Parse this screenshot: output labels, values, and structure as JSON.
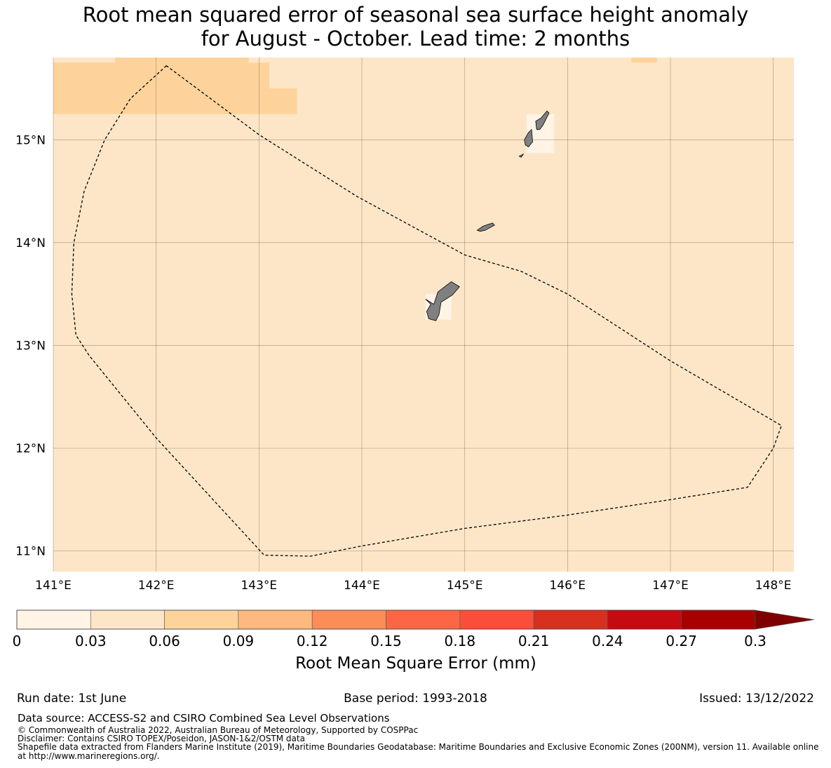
{
  "title": {
    "line1": "Root mean squared error of seasonal sea surface height anomaly",
    "line2": "for August - October. Lead time: 2 months"
  },
  "map": {
    "lon_range": [
      141.0,
      148.2
    ],
    "lat_range": [
      10.8,
      15.8
    ],
    "lon_ticks": [
      {
        "value": 141,
        "label": "141°E"
      },
      {
        "value": 142,
        "label": "142°E"
      },
      {
        "value": 143,
        "label": "143°E"
      },
      {
        "value": 144,
        "label": "144°E"
      },
      {
        "value": 145,
        "label": "145°E"
      },
      {
        "value": 146,
        "label": "146°E"
      },
      {
        "value": 147,
        "label": "147°E"
      },
      {
        "value": 148,
        "label": "148°E"
      }
    ],
    "lat_ticks": [
      {
        "value": 15,
        "label": "15°N"
      },
      {
        "value": 14,
        "label": "14°N"
      },
      {
        "value": 13,
        "label": "13°N"
      },
      {
        "value": 12,
        "label": "12°N"
      },
      {
        "value": 11,
        "label": "11°N"
      }
    ],
    "gridlines": true,
    "background_color": "#fde6c7",
    "land_color": "#808080",
    "higher_error_cells": [
      {
        "lon": [
          141.0,
          142.1
        ],
        "lat": [
          15.25,
          15.75
        ],
        "color": "#fdd39b"
      },
      {
        "lon": [
          141.6,
          142.9
        ],
        "lat": [
          15.75,
          15.8
        ],
        "color": "#fdd39b"
      },
      {
        "lon": [
          142.1,
          143.1
        ],
        "lat": [
          15.25,
          15.75
        ],
        "color": "#fdd39b"
      },
      {
        "lon": [
          143.1,
          143.37
        ],
        "lat": [
          15.25,
          15.5
        ],
        "color": "#fdd39b"
      },
      {
        "lon": [
          146.62,
          146.87
        ],
        "lat": [
          15.75,
          15.8
        ],
        "color": "#fdd39b"
      }
    ],
    "lower_error_cells": [
      {
        "lon": [
          145.6,
          145.87
        ],
        "lat": [
          14.87,
          15.25
        ],
        "color": "#fff4e5"
      },
      {
        "lon": [
          144.62,
          144.87
        ],
        "lat": [
          13.25,
          13.5
        ],
        "color": "#fff4e5"
      }
    ],
    "eez_boundary": [
      [
        142.1,
        15.72
      ],
      [
        141.75,
        15.4
      ],
      [
        141.5,
        15.0
      ],
      [
        141.3,
        14.5
      ],
      [
        141.2,
        14.0
      ],
      [
        141.18,
        13.5
      ],
      [
        141.22,
        13.1
      ],
      [
        141.35,
        12.9
      ],
      [
        142.0,
        12.1
      ],
      [
        143.05,
        10.96
      ],
      [
        143.5,
        10.95
      ],
      [
        144.0,
        11.05
      ],
      [
        145.0,
        11.22
      ],
      [
        146.0,
        11.35
      ],
      [
        147.0,
        11.5
      ],
      [
        147.75,
        11.62
      ],
      [
        148.0,
        12.0
      ],
      [
        148.08,
        12.22
      ],
      [
        147.0,
        12.85
      ],
      [
        146.0,
        13.5
      ],
      [
        145.55,
        13.72
      ],
      [
        145.0,
        13.88
      ],
      [
        143.95,
        14.45
      ],
      [
        143.0,
        15.05
      ],
      [
        142.1,
        15.72
      ]
    ],
    "islands": [
      {
        "name": "Guam",
        "outline": [
          [
            144.62,
            13.45
          ],
          [
            144.7,
            13.4
          ],
          [
            144.74,
            13.52
          ],
          [
            144.87,
            13.62
          ],
          [
            144.95,
            13.57
          ],
          [
            144.88,
            13.49
          ],
          [
            144.77,
            13.42
          ],
          [
            144.75,
            13.3
          ],
          [
            144.72,
            13.24
          ],
          [
            144.65,
            13.26
          ],
          [
            144.63,
            13.33
          ],
          [
            144.67,
            13.4
          ],
          [
            144.62,
            13.45
          ]
        ]
      },
      {
        "name": "Rota",
        "outline": [
          [
            145.12,
            14.12
          ],
          [
            145.18,
            14.16
          ],
          [
            145.27,
            14.19
          ],
          [
            145.29,
            14.17
          ],
          [
            145.2,
            14.12
          ],
          [
            145.15,
            14.11
          ],
          [
            145.12,
            14.12
          ]
        ]
      },
      {
        "name": "Tinian",
        "outline": [
          [
            145.58,
            15.0
          ],
          [
            145.62,
            15.07
          ],
          [
            145.65,
            15.1
          ],
          [
            145.66,
            14.98
          ],
          [
            145.62,
            14.93
          ],
          [
            145.59,
            14.95
          ],
          [
            145.58,
            15.0
          ]
        ]
      },
      {
        "name": "Saipan",
        "outline": [
          [
            145.69,
            15.18
          ],
          [
            145.74,
            15.21
          ],
          [
            145.8,
            15.28
          ],
          [
            145.82,
            15.26
          ],
          [
            145.76,
            15.14
          ],
          [
            145.73,
            15.1
          ],
          [
            145.7,
            15.1
          ],
          [
            145.69,
            15.18
          ]
        ]
      },
      {
        "name": "Aguijan",
        "outline": [
          [
            145.53,
            14.84
          ],
          [
            145.57,
            14.86
          ],
          [
            145.55,
            14.83
          ],
          [
            145.53,
            14.84
          ]
        ]
      }
    ]
  },
  "colorbar": {
    "title": "Root Mean Square Error (mm)",
    "ticks": [
      "0",
      "0.03",
      "0.06",
      "0.09",
      "0.12",
      "0.15",
      "0.18",
      "0.21",
      "0.24",
      "0.27",
      "0.3"
    ],
    "colors": [
      "#fff4e5",
      "#fde6c7",
      "#fdd39b",
      "#fdb97f",
      "#fc8d59",
      "#fc6647",
      "#fa4e3a",
      "#d7301f",
      "#c60a11",
      "#a80000"
    ],
    "extend_color": "#7f0000"
  },
  "footer": {
    "run_date": "Run date: 1st June",
    "base_period": "Base period: 1993-2018",
    "issued": "Issued: 13/12/2022",
    "data_source": "Data source: ACCESS-S2 and CSIRO Combined Sea Level Observations",
    "copyright": "© Commonwealth of Australia 2022, Australian Bureau of Meteorology, Supported by COSPPac",
    "disclaimer": "Disclaimer: Contains CSIRO TOPEX/Poseidon, JASON-1&2/OSTM data",
    "shapefile": "Shapefile data extracted from Flanders Marine Institute (2019), Maritime Boundaries Geodatabase: Maritime Boundaries and Exclusive Economic Zones (200NM), version 11. Available online at http://www.marineregions.org/."
  }
}
